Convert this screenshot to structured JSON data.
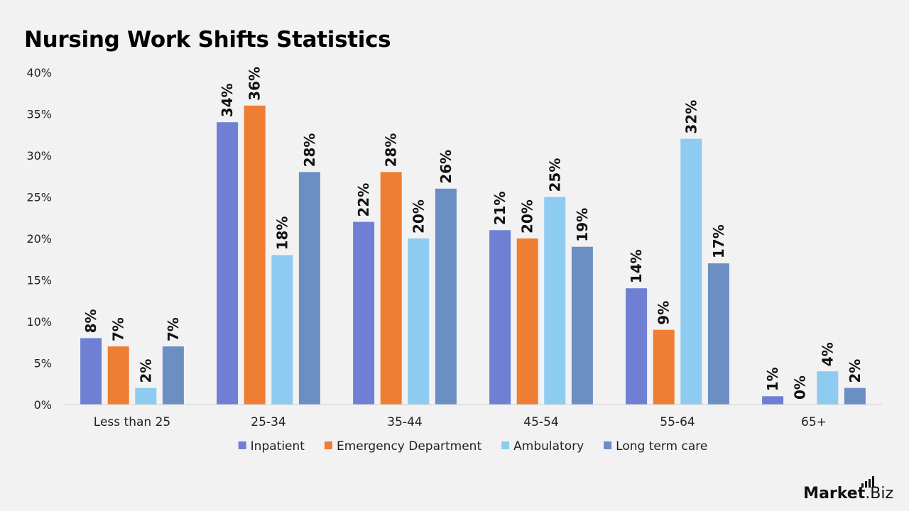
{
  "chart_data": {
    "type": "bar",
    "title": "Nursing Work Shifts Statistics",
    "xlabel": "",
    "ylabel": "",
    "categories": [
      "Less than 25",
      "25-34",
      "35-44",
      "45-54",
      "55-64",
      "65+"
    ],
    "series": [
      {
        "name": "Inpatient",
        "color": "#6f80d4",
        "values": [
          8,
          34,
          22,
          21,
          14,
          1
        ]
      },
      {
        "name": "Emergency Department",
        "color": "#ee7e32",
        "values": [
          7,
          36,
          28,
          20,
          9,
          0
        ]
      },
      {
        "name": "Ambulatory",
        "color": "#8ecbf1",
        "values": [
          2,
          18,
          20,
          25,
          32,
          4
        ]
      },
      {
        "name": "Long term care",
        "color": "#6b8fc2",
        "values": [
          7,
          28,
          26,
          19,
          17,
          2
        ]
      }
    ],
    "ylim": [
      0,
      40
    ],
    "yticks": [
      0,
      5,
      10,
      15,
      20,
      25,
      30,
      35,
      40
    ],
    "tick_format": "{v}%",
    "data_label_format": "{v}%",
    "grid": false,
    "legend_position": "bottom"
  },
  "brand": {
    "bold": "Market",
    "suffix": ".Biz"
  }
}
